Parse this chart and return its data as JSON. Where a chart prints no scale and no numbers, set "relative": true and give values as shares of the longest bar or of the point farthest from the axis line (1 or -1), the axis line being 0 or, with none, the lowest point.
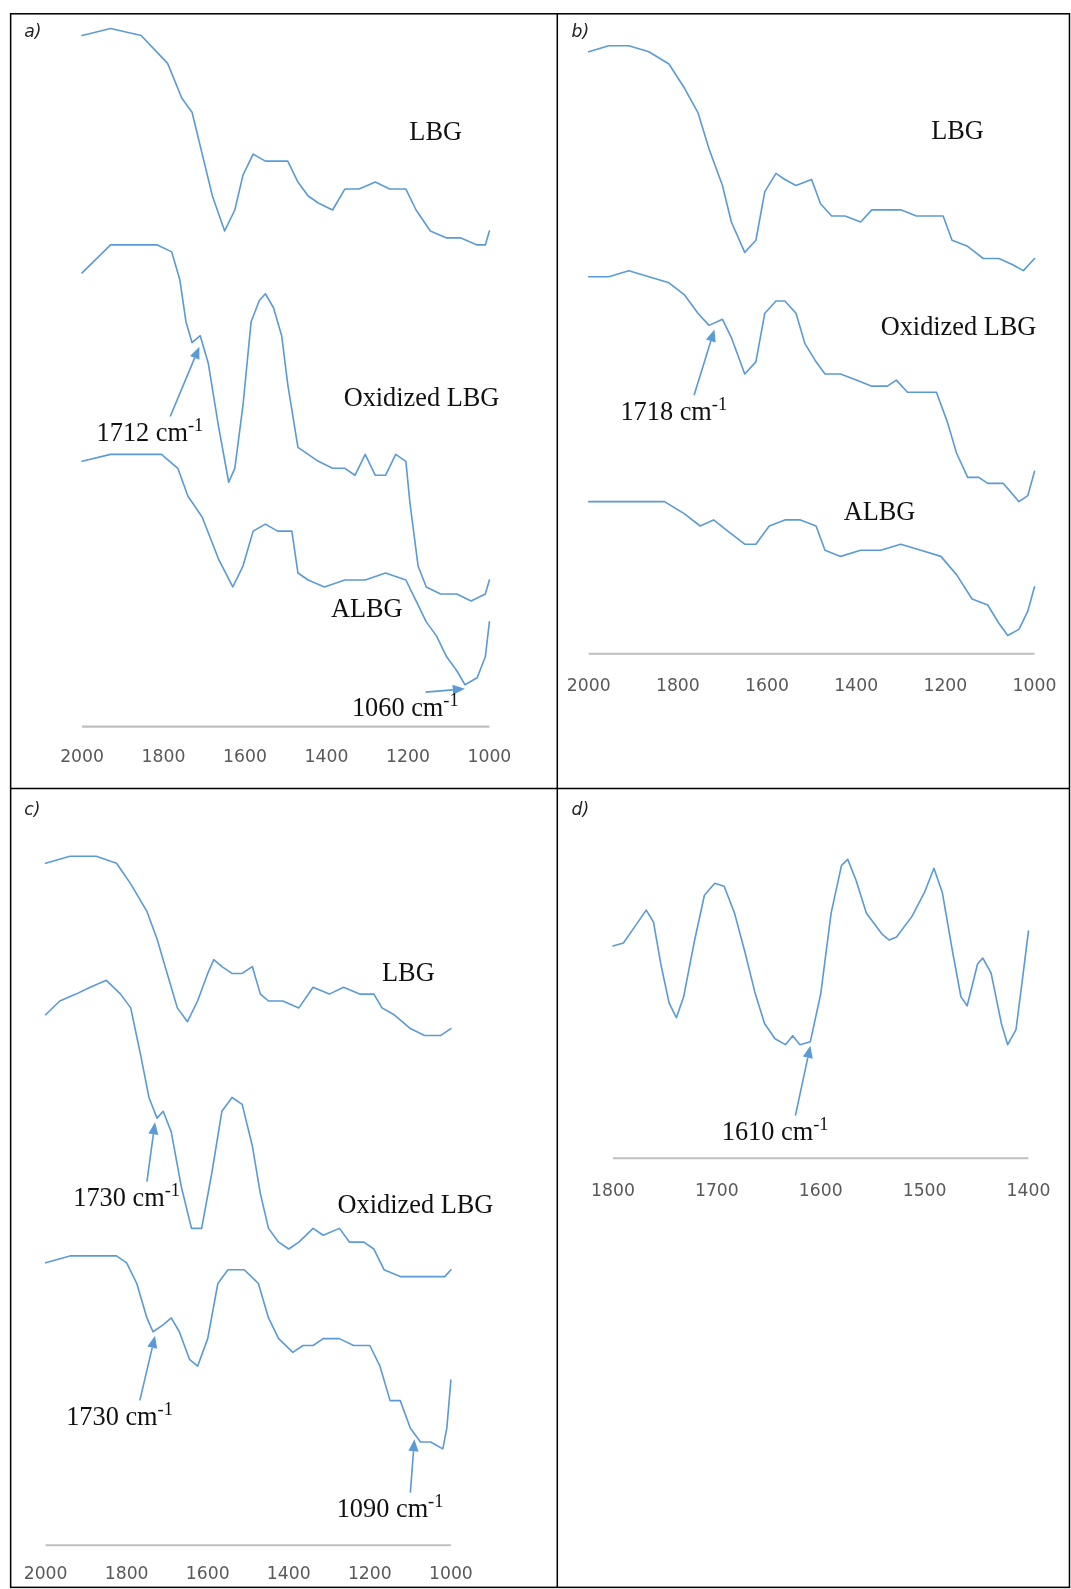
{
  "chart_data": [
    {
      "type": "line",
      "title": "a)",
      "relative": true,
      "xlim": [
        2000,
        1000
      ],
      "xticks": [
        2000,
        1800,
        1600,
        1400,
        1200,
        1000
      ],
      "tick_labels": "x",
      "series": [
        {
          "name": "LBG",
          "color": "#5b9bd5",
          "x": [
            2000,
            1930,
            1855,
            1790,
            1755,
            1730,
            1705,
            1680,
            1650,
            1625,
            1605,
            1580,
            1550,
            1525,
            1495,
            1470,
            1445,
            1420,
            1385,
            1355,
            1320,
            1280,
            1245,
            1205,
            1180,
            1145,
            1105,
            1070,
            1030,
            1010,
            1000
          ],
          "values": [
            0.99,
            1.0,
            0.99,
            0.95,
            0.9,
            0.88,
            0.82,
            0.76,
            0.71,
            0.74,
            0.79,
            0.82,
            0.81,
            0.81,
            0.81,
            0.78,
            0.76,
            0.75,
            0.74,
            0.77,
            0.77,
            0.78,
            0.77,
            0.77,
            0.74,
            0.71,
            0.7,
            0.7,
            0.69,
            0.69,
            0.71
          ]
        },
        {
          "name": "Oxidized LBG",
          "color": "#5b9bd5",
          "x": [
            2000,
            1965,
            1930,
            1890,
            1855,
            1815,
            1780,
            1760,
            1745,
            1730,
            1710,
            1690,
            1665,
            1640,
            1625,
            1605,
            1585,
            1565,
            1550,
            1530,
            1510,
            1495,
            1470,
            1445,
            1420,
            1385,
            1355,
            1330,
            1305,
            1280,
            1255,
            1230,
            1205,
            1195,
            1175,
            1155,
            1120,
            1080,
            1045,
            1010,
            1000
          ],
          "values": [
            0.65,
            0.67,
            0.69,
            0.69,
            0.69,
            0.69,
            0.68,
            0.64,
            0.58,
            0.55,
            0.56,
            0.52,
            0.43,
            0.35,
            0.37,
            0.46,
            0.58,
            0.61,
            0.62,
            0.6,
            0.56,
            0.49,
            0.4,
            0.39,
            0.38,
            0.37,
            0.37,
            0.36,
            0.39,
            0.36,
            0.36,
            0.39,
            0.38,
            0.32,
            0.23,
            0.2,
            0.19,
            0.19,
            0.18,
            0.19,
            0.21
          ]
        },
        {
          "name": "ALBG",
          "color": "#5b9bd5",
          "x": [
            2000,
            1930,
            1855,
            1805,
            1765,
            1740,
            1705,
            1665,
            1630,
            1605,
            1580,
            1550,
            1520,
            1485,
            1470,
            1445,
            1405,
            1355,
            1305,
            1255,
            1205,
            1180,
            1155,
            1130,
            1105,
            1080,
            1060,
            1030,
            1010,
            1000
          ],
          "values": [
            0.38,
            0.39,
            0.39,
            0.39,
            0.37,
            0.33,
            0.3,
            0.24,
            0.2,
            0.23,
            0.28,
            0.29,
            0.28,
            0.28,
            0.22,
            0.21,
            0.2,
            0.21,
            0.21,
            0.22,
            0.21,
            0.18,
            0.15,
            0.13,
            0.1,
            0.08,
            0.06,
            0.07,
            0.1,
            0.15
          ]
        }
      ],
      "annotations": [
        {
          "text": "1712 cm$^{-1}$",
          "x": 1712,
          "y": 0.55
        },
        {
          "text": "1060 cm$^{-1}$",
          "x": 1060,
          "y": 0.06
        }
      ]
    },
    {
      "type": "line",
      "title": "b)",
      "relative": true,
      "xlim": [
        2000,
        1000
      ],
      "xticks": [
        2000,
        1800,
        1600,
        1400,
        1200,
        1000
      ],
      "tick_labels": "x",
      "series": [
        {
          "name": "LBG",
          "color": "#5b9bd5",
          "x": [
            2000,
            1955,
            1910,
            1865,
            1820,
            1785,
            1755,
            1730,
            1700,
            1680,
            1650,
            1625,
            1605,
            1580,
            1560,
            1535,
            1500,
            1480,
            1455,
            1425,
            1390,
            1365,
            1330,
            1300,
            1265,
            1230,
            1205,
            1185,
            1150,
            1115,
            1080,
            1050,
            1025,
            1000
          ],
          "values": [
            0.99,
            1.0,
            1.0,
            0.99,
            0.97,
            0.93,
            0.89,
            0.83,
            0.77,
            0.71,
            0.66,
            0.68,
            0.76,
            0.79,
            0.78,
            0.77,
            0.78,
            0.74,
            0.72,
            0.72,
            0.71,
            0.73,
            0.73,
            0.73,
            0.72,
            0.72,
            0.72,
            0.68,
            0.67,
            0.65,
            0.65,
            0.64,
            0.63,
            0.65
          ]
        },
        {
          "name": "Oxidized LBG",
          "color": "#5b9bd5",
          "x": [
            2000,
            1955,
            1910,
            1865,
            1820,
            1785,
            1755,
            1730,
            1700,
            1680,
            1650,
            1625,
            1605,
            1580,
            1560,
            1535,
            1515,
            1490,
            1470,
            1435,
            1400,
            1365,
            1330,
            1310,
            1285,
            1250,
            1220,
            1195,
            1175,
            1150,
            1125,
            1105,
            1070,
            1035,
            1015,
            1000
          ],
          "values": [
            0.62,
            0.62,
            0.63,
            0.62,
            0.61,
            0.59,
            0.56,
            0.54,
            0.55,
            0.52,
            0.46,
            0.48,
            0.56,
            0.58,
            0.58,
            0.56,
            0.51,
            0.48,
            0.46,
            0.46,
            0.45,
            0.44,
            0.44,
            0.45,
            0.43,
            0.43,
            0.43,
            0.38,
            0.33,
            0.29,
            0.29,
            0.28,
            0.28,
            0.25,
            0.26,
            0.3
          ]
        },
        {
          "name": "ALBG",
          "color": "#5b9bd5",
          "x": [
            2000,
            1910,
            1830,
            1785,
            1750,
            1720,
            1685,
            1650,
            1625,
            1595,
            1560,
            1525,
            1490,
            1470,
            1435,
            1390,
            1345,
            1300,
            1255,
            1210,
            1175,
            1140,
            1105,
            1080,
            1060,
            1035,
            1015,
            1000
          ],
          "values": [
            0.25,
            0.25,
            0.25,
            0.23,
            0.21,
            0.22,
            0.2,
            0.18,
            0.18,
            0.21,
            0.22,
            0.22,
            0.21,
            0.17,
            0.16,
            0.17,
            0.17,
            0.18,
            0.17,
            0.16,
            0.13,
            0.09,
            0.08,
            0.05,
            0.03,
            0.04,
            0.07,
            0.11
          ]
        }
      ],
      "annotations": [
        {
          "text": "1718 cm$^{-1}$",
          "x": 1718,
          "y": 0.54
        }
      ]
    },
    {
      "type": "line",
      "title": "c)",
      "relative": true,
      "xlim": [
        2000,
        1000
      ],
      "xticks": [
        2000,
        1800,
        1600,
        1400,
        1200,
        1000
      ],
      "tick_labels": "x",
      "series": [
        {
          "name": "LBG",
          "color": "#5b9bd5",
          "x": [
            2000,
            1940,
            1875,
            1825,
            1790,
            1750,
            1725,
            1700,
            1675,
            1650,
            1625,
            1600,
            1585,
            1565,
            1540,
            1515,
            1490,
            1470,
            1450,
            1415,
            1375,
            1340,
            1300,
            1265,
            1225,
            1190,
            1170,
            1140,
            1100,
            1065,
            1025,
            1000
          ],
          "values": [
            0.99,
            1.0,
            1.0,
            0.99,
            0.96,
            0.92,
            0.88,
            0.83,
            0.78,
            0.76,
            0.79,
            0.83,
            0.85,
            0.84,
            0.83,
            0.83,
            0.84,
            0.8,
            0.79,
            0.79,
            0.78,
            0.81,
            0.8,
            0.81,
            0.8,
            0.8,
            0.78,
            0.77,
            0.75,
            0.74,
            0.74,
            0.75
          ]
        },
        {
          "name": "Oxidized LBG",
          "color": "#5b9bd5",
          "x": [
            2000,
            1965,
            1925,
            1890,
            1850,
            1815,
            1790,
            1765,
            1745,
            1725,
            1710,
            1690,
            1665,
            1640,
            1615,
            1590,
            1565,
            1540,
            1515,
            1490,
            1470,
            1450,
            1425,
            1400,
            1375,
            1340,
            1315,
            1275,
            1250,
            1215,
            1190,
            1165,
            1125,
            1090,
            1050,
            1015,
            1000
          ],
          "values": [
            0.77,
            0.79,
            0.8,
            0.81,
            0.82,
            0.8,
            0.78,
            0.71,
            0.65,
            0.62,
            0.63,
            0.6,
            0.52,
            0.46,
            0.46,
            0.54,
            0.63,
            0.65,
            0.64,
            0.58,
            0.51,
            0.46,
            0.44,
            0.43,
            0.44,
            0.46,
            0.45,
            0.46,
            0.44,
            0.44,
            0.43,
            0.4,
            0.39,
            0.39,
            0.39,
            0.39,
            0.4
          ]
        },
        {
          "color": "#5b9bd5",
          "x": [
            2000,
            1940,
            1875,
            1825,
            1800,
            1775,
            1750,
            1735,
            1710,
            1690,
            1670,
            1645,
            1625,
            1600,
            1575,
            1550,
            1510,
            1475,
            1450,
            1425,
            1390,
            1365,
            1340,
            1315,
            1275,
            1240,
            1200,
            1175,
            1150,
            1125,
            1100,
            1075,
            1050,
            1020,
            1010,
            1000
          ],
          "values": [
            0.41,
            0.42,
            0.42,
            0.42,
            0.41,
            0.38,
            0.33,
            0.31,
            0.32,
            0.33,
            0.31,
            0.27,
            0.26,
            0.3,
            0.38,
            0.4,
            0.4,
            0.38,
            0.33,
            0.3,
            0.28,
            0.29,
            0.29,
            0.3,
            0.3,
            0.29,
            0.29,
            0.26,
            0.21,
            0.21,
            0.17,
            0.15,
            0.15,
            0.14,
            0.17,
            0.24
          ]
        }
      ],
      "annotations": [
        {
          "text": "1730 cm$^{-1}$",
          "x": 1730,
          "y": 0.62
        },
        {
          "text": "1730 cm$^{-1}$",
          "x": 1730,
          "y": 0.31
        },
        {
          "text": "1090 cm$^{-1}$",
          "x": 1090,
          "y": 0.16
        }
      ]
    },
    {
      "type": "line",
      "title": "d)",
      "relative": true,
      "xlim": [
        1800,
        1400
      ],
      "xticks": [
        1800,
        1700,
        1600,
        1500,
        1400
      ],
      "tick_labels": "x",
      "series": [
        {
          "color": "#5b9bd5",
          "x": [
            1800,
            1790,
            1780,
            1768,
            1761,
            1754,
            1746,
            1739,
            1732,
            1722,
            1712,
            1702,
            1693,
            1683,
            1673,
            1663,
            1654,
            1644,
            1634,
            1627,
            1620,
            1610,
            1600,
            1590,
            1580,
            1574,
            1566,
            1556,
            1541,
            1534,
            1527,
            1512,
            1500,
            1491,
            1483,
            1473,
            1465,
            1459,
            1449,
            1444,
            1436,
            1426,
            1420,
            1412,
            1405,
            1400
          ],
          "values": [
            0.71,
            0.72,
            0.77,
            0.83,
            0.79,
            0.65,
            0.52,
            0.47,
            0.54,
            0.72,
            0.88,
            0.92,
            0.91,
            0.82,
            0.69,
            0.55,
            0.45,
            0.4,
            0.38,
            0.41,
            0.38,
            0.39,
            0.55,
            0.82,
            0.98,
            1.0,
            0.93,
            0.82,
            0.75,
            0.73,
            0.74,
            0.81,
            0.89,
            0.97,
            0.89,
            0.69,
            0.54,
            0.51,
            0.65,
            0.67,
            0.62,
            0.45,
            0.38,
            0.43,
            0.62,
            0.76
          ]
        }
      ],
      "annotations": [
        {
          "text": "1610 cm$^{-1}$",
          "x": 1610,
          "y": 0.39
        }
      ]
    }
  ]
}
